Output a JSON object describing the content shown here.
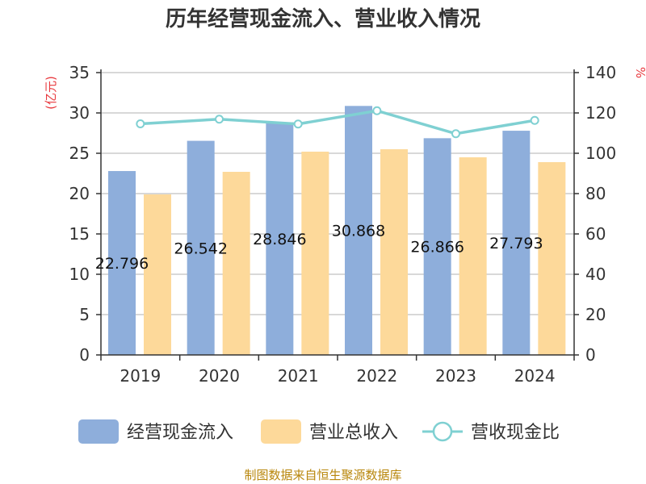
{
  "chart_data": {
    "type": "bar",
    "title": "历年经营现金流入、营业收入情况",
    "categories": [
      "2019",
      "2020",
      "2021",
      "2022",
      "2023",
      "2024"
    ],
    "series": [
      {
        "name": "经营现金流入",
        "kind": "bar",
        "axis": "left",
        "values": [
          22.796,
          26.542,
          28.846,
          30.868,
          26.866,
          27.793
        ],
        "labels": [
          "22.796",
          "26.542",
          "28.846",
          "30.868",
          "26.866",
          "27.793"
        ]
      },
      {
        "name": "营业总收入",
        "kind": "bar",
        "axis": "left",
        "values": [
          19.9,
          22.7,
          25.2,
          25.5,
          24.5,
          23.9
        ]
      },
      {
        "name": "营收现金比",
        "kind": "line",
        "axis": "right",
        "values": [
          114.6,
          116.9,
          114.5,
          121.1,
          109.7,
          116.3
        ]
      }
    ],
    "y_left": {
      "unit": "(亿元)",
      "ylim": [
        0,
        35
      ],
      "ticks": [
        "0",
        "5",
        "10",
        "15",
        "20",
        "25",
        "30",
        "35"
      ]
    },
    "y_right": {
      "unit": "%",
      "ylim": [
        0,
        140
      ],
      "ticks": [
        "0",
        "20",
        "40",
        "60",
        "80",
        "100",
        "120",
        "140"
      ]
    },
    "grid": true,
    "legend_position": "bottom",
    "colors": {
      "bar1": "#8eaedb",
      "bar2": "#fdd99a",
      "line": "#7fd0d2",
      "grid": "#cccccc",
      "unit": "#e8383d",
      "source": "#b8860b"
    }
  },
  "source_text": "制图数据来自恒生聚源数据库"
}
